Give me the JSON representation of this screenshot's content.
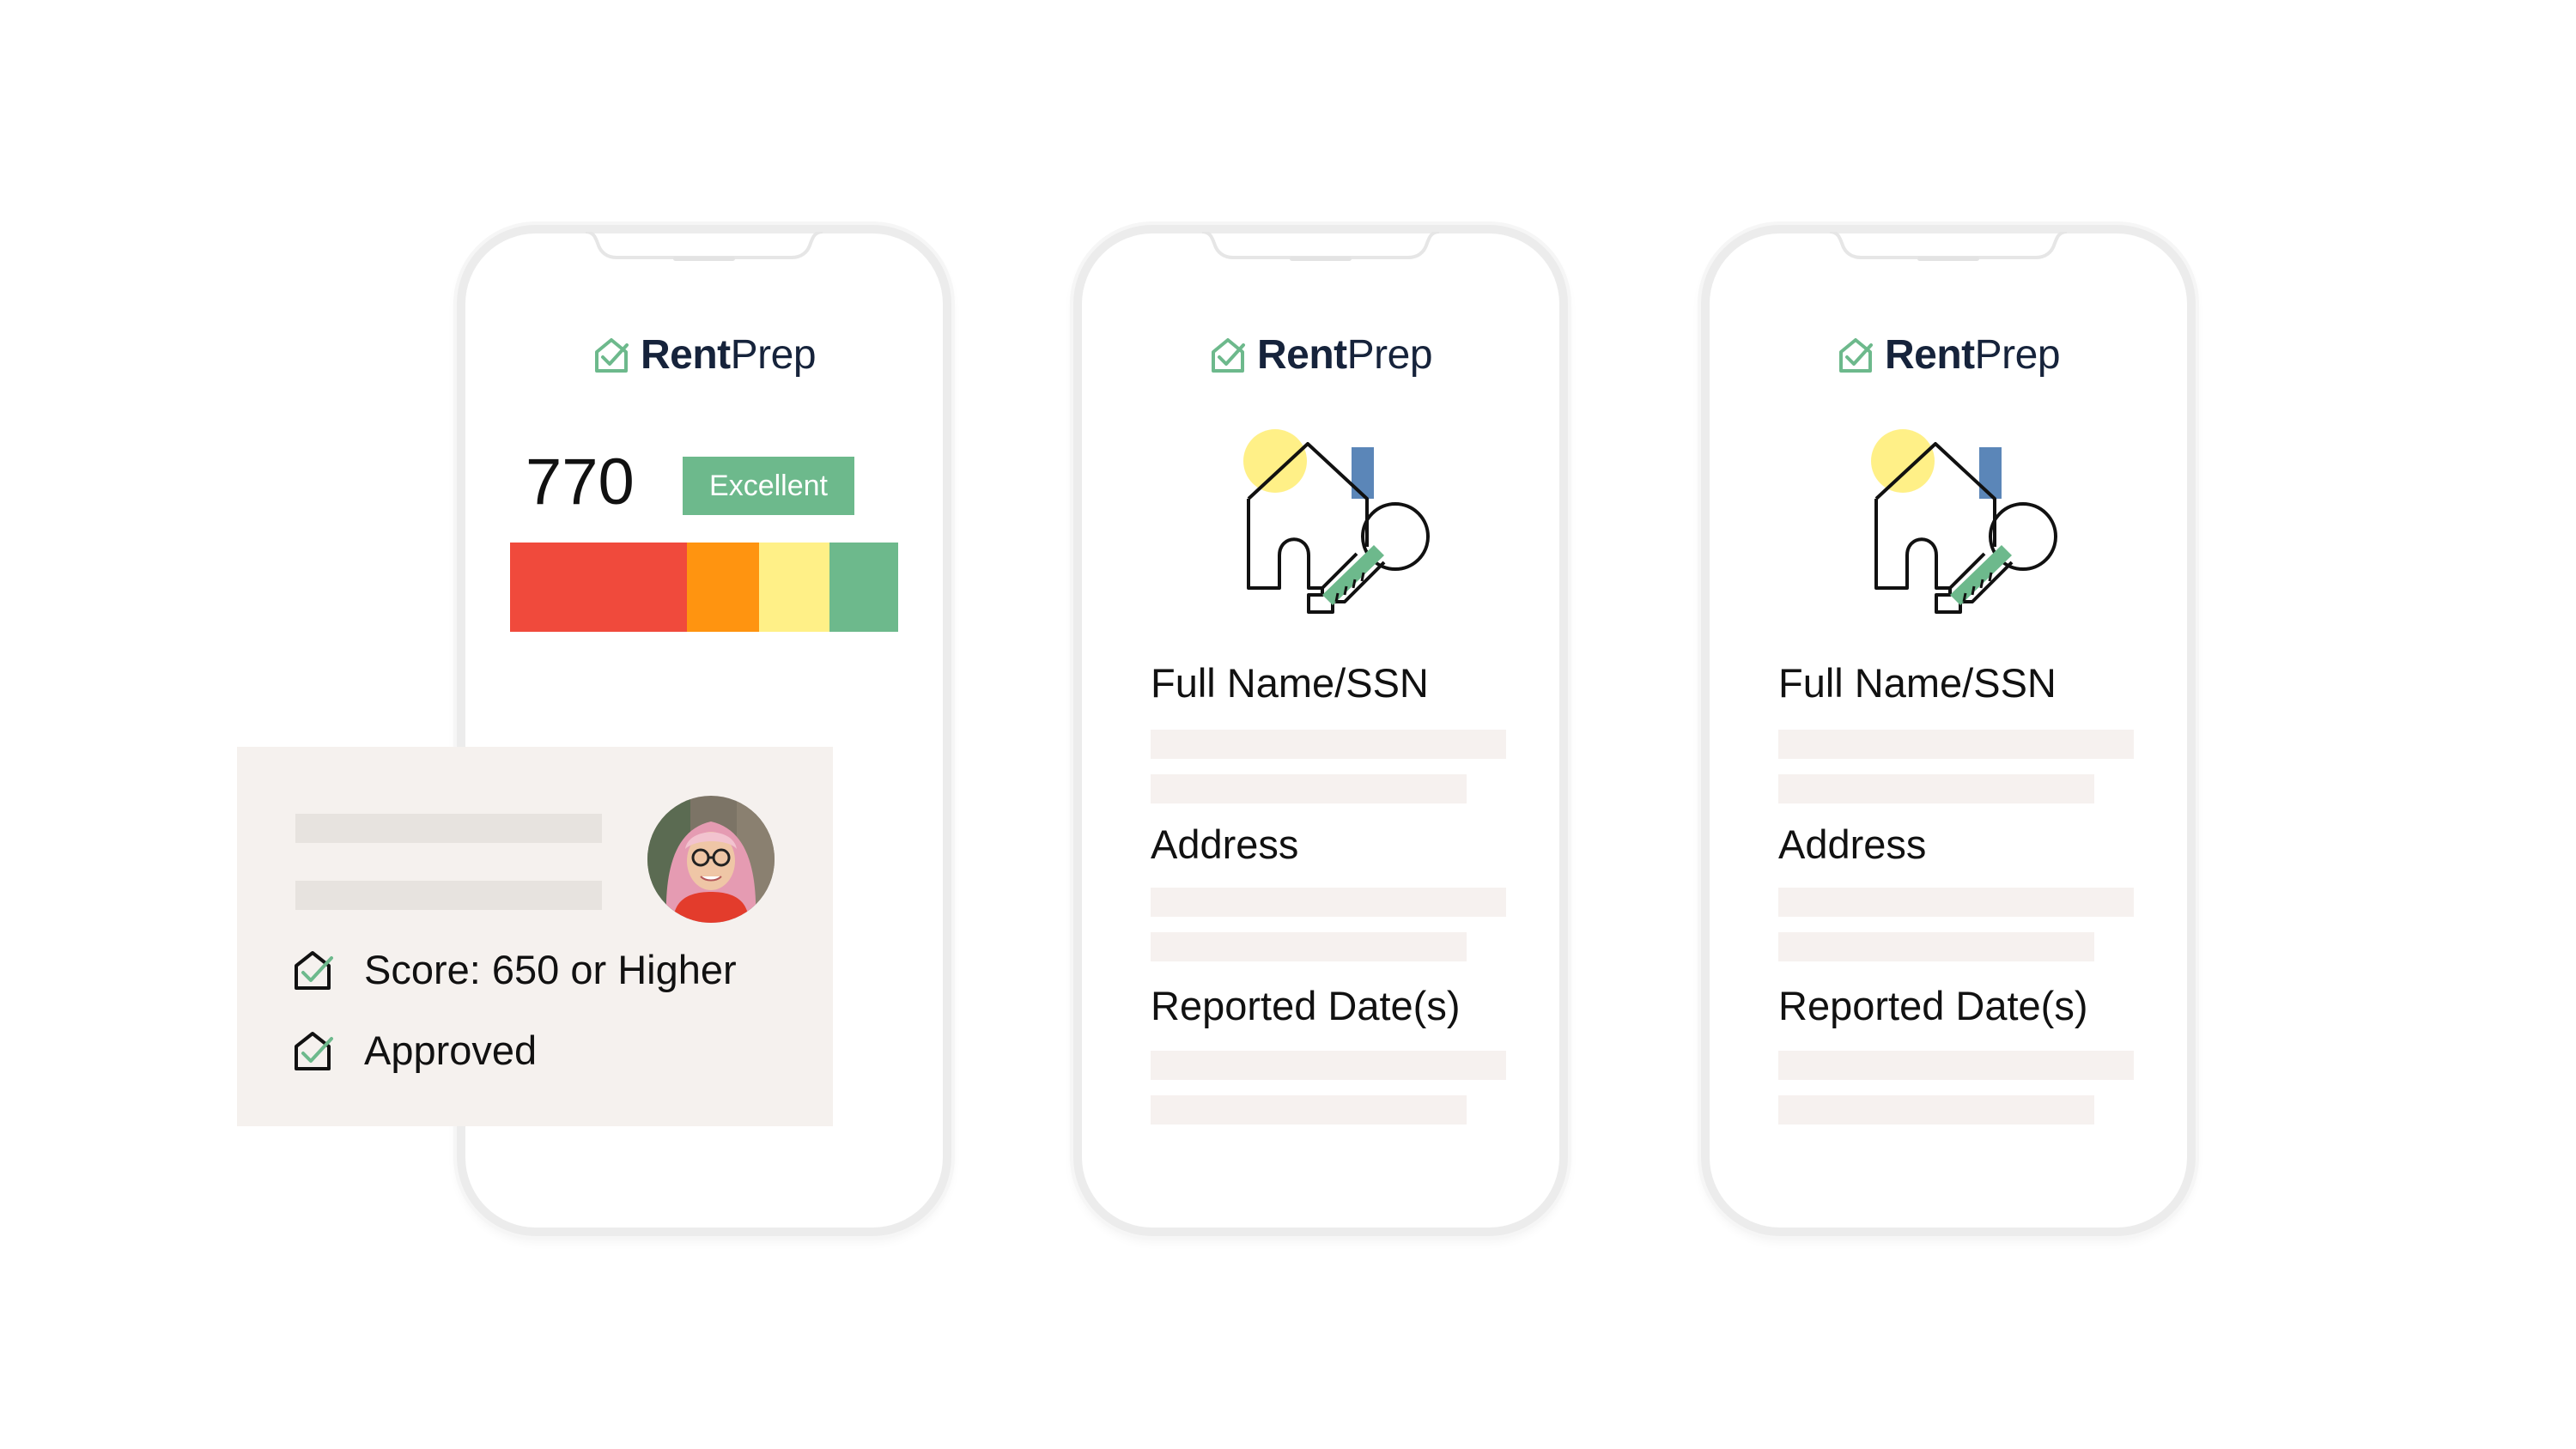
{
  "brand": {
    "bold": "Rent",
    "light": "Prep",
    "accent": "#6db98c",
    "dark": "#16233b"
  },
  "score_phone": {
    "score": "770",
    "rating": "Excellent",
    "scale_colors": [
      "#f04a3c",
      "#ff9410",
      "#fff087",
      "#6db98c"
    ]
  },
  "report_phones": [
    {
      "fields": [
        "Full Name/SSN",
        "Address",
        "Reported Date(s)"
      ]
    },
    {
      "fields": [
        "Full Name/SSN",
        "Address",
        "Reported Date(s)"
      ]
    }
  ],
  "applicant_card": {
    "checks": [
      "Score: 650 or Higher",
      "Approved"
    ],
    "avatar": "applicant-photo"
  }
}
